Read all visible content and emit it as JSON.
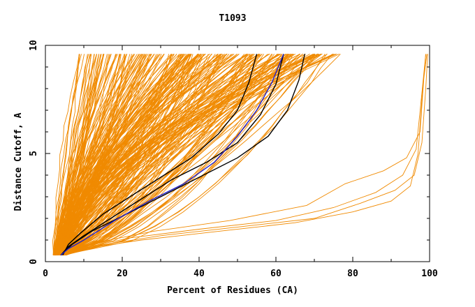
{
  "chart_data": {
    "type": "line",
    "title": "T1093",
    "xlabel": "Percent of Residues (CA)",
    "ylabel": "Distance Cutoff, A",
    "xlim": [
      0,
      100
    ],
    "ylim": [
      0,
      10
    ],
    "x_ticks": [
      {
        "value": 0,
        "label": "0"
      },
      {
        "value": 20,
        "label": "20"
      },
      {
        "value": 40,
        "label": "40"
      },
      {
        "value": 60,
        "label": "60"
      },
      {
        "value": 80,
        "label": "80"
      },
      {
        "value": 100,
        "label": "100"
      }
    ],
    "y_ticks": [
      {
        "value": 0,
        "label": "0"
      },
      {
        "value": 5,
        "label": "5"
      },
      {
        "value": 10,
        "label": "10"
      }
    ],
    "grid": false,
    "legend": "none",
    "colors": {
      "background_curves": "#f08a00",
      "highlight_black": "#000000",
      "highlight_blue": "#2020cc"
    },
    "highlighted_series": [
      {
        "color": "black",
        "x": [
          4.5,
          6,
          9,
          15,
          22,
          30,
          38,
          45,
          50,
          53,
          55
        ],
        "y": [
          0.3,
          0.8,
          1.3,
          2.2,
          3.0,
          3.9,
          4.8,
          5.9,
          7.0,
          8.3,
          9.6
        ]
      },
      {
        "color": "black",
        "x": [
          4,
          6,
          10,
          17,
          25,
          33,
          42,
          50,
          56,
          60,
          62
        ],
        "y": [
          0.3,
          0.7,
          1.2,
          2.0,
          2.9,
          3.8,
          4.6,
          5.5,
          6.8,
          8.2,
          9.6
        ]
      },
      {
        "color": "black",
        "x": [
          4,
          7,
          12,
          20,
          30,
          40,
          50,
          58,
          63,
          66,
          67.5
        ],
        "y": [
          0.3,
          0.8,
          1.4,
          2.1,
          3.0,
          3.9,
          4.8,
          5.8,
          7.0,
          8.4,
          9.6
        ]
      },
      {
        "color": "blue",
        "x": [
          4,
          6,
          10,
          18,
          27,
          36,
          44,
          50,
          55,
          59,
          62
        ],
        "y": [
          0.3,
          0.6,
          1.0,
          1.9,
          2.8,
          3.6,
          4.6,
          5.8,
          7.0,
          8.3,
          9.6
        ]
      }
    ],
    "outlier_series": [
      {
        "x": [
          3,
          10,
          25,
          45,
          65,
          80,
          90,
          95,
          97,
          98,
          99
        ],
        "y": [
          0.3,
          0.6,
          1.0,
          1.4,
          1.8,
          2.3,
          2.8,
          3.5,
          5.0,
          7.5,
          9.6
        ]
      },
      {
        "x": [
          3,
          12,
          30,
          50,
          70,
          82,
          91,
          96,
          98,
          99,
          99.5
        ],
        "y": [
          0.3,
          0.7,
          1.2,
          1.6,
          2.0,
          2.7,
          3.3,
          4.0,
          5.5,
          8.0,
          9.6
        ]
      },
      {
        "x": [
          3,
          11,
          28,
          48,
          68,
          78,
          88,
          94,
          97.5,
          98.5,
          99.3
        ],
        "y": [
          0.3,
          0.8,
          1.4,
          1.9,
          2.6,
          3.6,
          4.2,
          4.8,
          6.0,
          8.5,
          9.6
        ]
      },
      {
        "x": [
          3,
          9,
          22,
          40,
          60,
          75,
          86,
          93,
          96.5,
          98,
          99
        ],
        "y": [
          0.3,
          0.6,
          1.1,
          1.5,
          1.9,
          2.5,
          3.2,
          4.0,
          5.2,
          7.8,
          9.6
        ]
      }
    ]
  }
}
